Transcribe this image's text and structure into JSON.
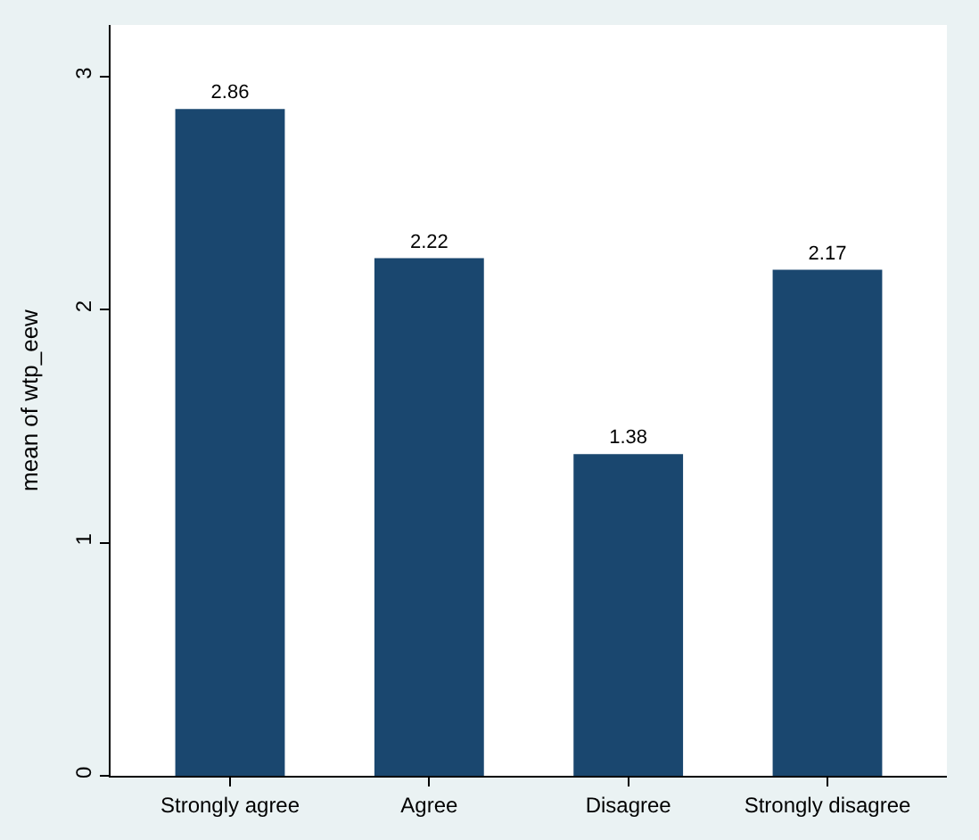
{
  "chart_data": {
    "type": "bar",
    "ylabel": "mean of wtp_eew",
    "categories": [
      "Strongly agree",
      "Agree",
      "Disagree",
      "Strongly disagree"
    ],
    "values": [
      2.86,
      2.22,
      1.38,
      2.17
    ],
    "color": "#1a476f",
    "ylim": [
      0,
      3.22
    ],
    "yticks": [
      0,
      1,
      2,
      3
    ],
    "data_labels": true
  }
}
